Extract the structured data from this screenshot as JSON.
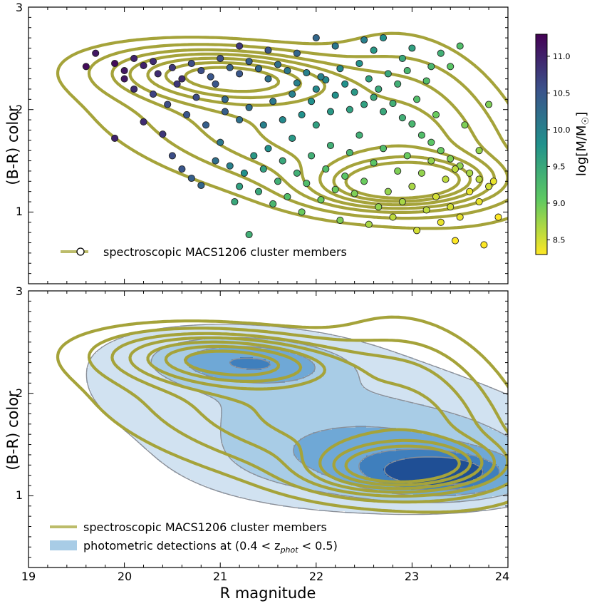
{
  "chart_data": [
    {
      "type": "scatter",
      "panel": "top",
      "xlim": [
        19,
        24
      ],
      "ylim": [
        0.3,
        3.0
      ],
      "ylabel": "(B-R) color",
      "yticks": [
        "1",
        "2",
        "3"
      ],
      "legend": {
        "label": "spectroscopic MACS1206 cluster members",
        "placement": "bottom-left"
      },
      "colorbar": {
        "label": "log[M/M☉]",
        "range": [
          8.3,
          11.3
        ],
        "ticks": [
          "11.0",
          "10.5",
          "10.0",
          "9.5",
          "9.0",
          "8.5"
        ]
      },
      "series": [
        {
          "name": "spectroscopic MACS1206 cluster members (points)",
          "points_xym": [
            [
              19.6,
              2.42,
              11.2
            ],
            [
              19.7,
              2.55,
              11.1
            ],
            [
              19.9,
              2.45,
              11.2
            ],
            [
              20.0,
              2.38,
              11.1
            ],
            [
              20.1,
              2.5,
              11.0
            ],
            [
              20.2,
              2.43,
              11.0
            ],
            [
              20.3,
              2.47,
              10.9
            ],
            [
              20.35,
              2.35,
              10.9
            ],
            [
              20.5,
              2.41,
              10.8
            ],
            [
              20.6,
              2.3,
              10.9
            ],
            [
              20.7,
              2.45,
              10.6
            ],
            [
              20.8,
              2.38,
              10.6
            ],
            [
              20.9,
              2.32,
              10.5
            ],
            [
              21.0,
              2.5,
              10.6
            ],
            [
              21.1,
              2.41,
              10.4
            ],
            [
              21.2,
              2.35,
              10.5
            ],
            [
              21.3,
              2.47,
              10.4
            ],
            [
              21.4,
              2.4,
              10.3
            ],
            [
              21.5,
              2.3,
              10.2
            ],
            [
              21.6,
              2.44,
              10.2
            ],
            [
              21.7,
              2.38,
              10.1
            ],
            [
              21.8,
              2.26,
              10.0
            ],
            [
              21.9,
              2.36,
              10.0
            ],
            [
              22.0,
              2.2,
              9.9
            ],
            [
              22.1,
              2.29,
              9.9
            ],
            [
              22.2,
              2.14,
              9.8
            ],
            [
              22.3,
              2.25,
              9.8
            ],
            [
              22.4,
              2.17,
              9.7
            ],
            [
              22.5,
              2.05,
              9.6
            ],
            [
              22.6,
              2.12,
              9.5
            ],
            [
              22.7,
              1.98,
              9.5
            ],
            [
              22.8,
              2.06,
              9.4
            ],
            [
              22.9,
              1.92,
              9.4
            ],
            [
              23.0,
              1.86,
              9.3
            ],
            [
              23.1,
              1.75,
              9.2
            ],
            [
              23.2,
              1.68,
              9.1
            ],
            [
              23.3,
              1.6,
              9.0
            ],
            [
              23.4,
              1.52,
              8.9
            ],
            [
              23.5,
              1.45,
              8.8
            ],
            [
              23.6,
              1.38,
              8.7
            ],
            [
              23.7,
              1.32,
              8.6
            ],
            [
              23.8,
              1.25,
              8.5
            ],
            [
              19.9,
              1.72,
              11.0
            ],
            [
              20.2,
              1.88,
              10.9
            ],
            [
              20.4,
              1.76,
              10.8
            ],
            [
              20.5,
              1.55,
              10.6
            ],
            [
              20.6,
              1.42,
              10.5
            ],
            [
              20.7,
              1.33,
              10.4
            ],
            [
              20.8,
              1.26,
              10.3
            ],
            [
              20.95,
              1.5,
              10.2
            ],
            [
              21.0,
              1.68,
              10.1
            ],
            [
              21.05,
              1.98,
              10.4
            ],
            [
              21.1,
              1.45,
              10.0
            ],
            [
              21.15,
              1.1,
              9.5
            ],
            [
              21.2,
              1.25,
              9.6
            ],
            [
              21.25,
              1.38,
              9.8
            ],
            [
              21.3,
              0.78,
              9.4
            ],
            [
              21.35,
              1.55,
              9.7
            ],
            [
              21.4,
              1.2,
              9.5
            ],
            [
              21.45,
              1.42,
              9.6
            ],
            [
              21.5,
              1.62,
              9.8
            ],
            [
              21.55,
              1.08,
              9.3
            ],
            [
              21.6,
              1.3,
              9.4
            ],
            [
              21.65,
              1.5,
              9.5
            ],
            [
              21.7,
              1.15,
              9.2
            ],
            [
              21.75,
              1.72,
              9.7
            ],
            [
              21.8,
              1.38,
              9.4
            ],
            [
              21.85,
              1.0,
              9.0
            ],
            [
              21.9,
              1.28,
              9.2
            ],
            [
              21.95,
              1.55,
              9.4
            ],
            [
              22.0,
              1.85,
              9.6
            ],
            [
              22.05,
              1.12,
              9.0
            ],
            [
              22.1,
              1.42,
              9.2
            ],
            [
              22.15,
              1.65,
              9.4
            ],
            [
              22.2,
              1.22,
              9.0
            ],
            [
              22.25,
              0.92,
              8.9
            ],
            [
              22.3,
              1.35,
              9.1
            ],
            [
              22.35,
              1.58,
              9.3
            ],
            [
              22.4,
              1.18,
              8.9
            ],
            [
              22.45,
              1.75,
              9.4
            ],
            [
              22.5,
              1.3,
              9.0
            ],
            [
              22.55,
              0.88,
              8.7
            ],
            [
              22.6,
              1.48,
              9.1
            ],
            [
              22.65,
              1.05,
              8.8
            ],
            [
              22.7,
              1.62,
              9.2
            ],
            [
              22.75,
              1.2,
              8.8
            ],
            [
              22.8,
              0.95,
              8.6
            ],
            [
              22.85,
              1.4,
              8.9
            ],
            [
              22.9,
              1.1,
              8.7
            ],
            [
              22.95,
              1.55,
              9.0
            ],
            [
              23.0,
              1.25,
              8.7
            ],
            [
              23.05,
              0.82,
              8.5
            ],
            [
              23.1,
              1.38,
              8.8
            ],
            [
              23.15,
              1.02,
              8.6
            ],
            [
              23.2,
              1.5,
              8.8
            ],
            [
              23.25,
              1.15,
              8.5
            ],
            [
              23.3,
              0.9,
              8.4
            ],
            [
              23.35,
              1.32,
              8.6
            ],
            [
              23.4,
              1.05,
              8.5
            ],
            [
              23.45,
              1.42,
              8.6
            ],
            [
              23.5,
              0.95,
              8.4
            ],
            [
              23.6,
              1.2,
              8.4
            ],
            [
              23.7,
              1.1,
              8.4
            ],
            [
              23.85,
              1.3,
              8.4
            ],
            [
              23.9,
              0.95,
              8.3
            ],
            [
              23.75,
              0.68,
              8.3
            ],
            [
              23.45,
              0.72,
              8.3
            ],
            [
              20.0,
              2.3,
              11.1
            ],
            [
              20.1,
              2.2,
              10.9
            ],
            [
              20.3,
              2.15,
              10.7
            ],
            [
              20.45,
              2.05,
              10.6
            ],
            [
              20.55,
              2.25,
              10.8
            ],
            [
              20.65,
              1.95,
              10.5
            ],
            [
              20.75,
              2.12,
              10.6
            ],
            [
              20.85,
              1.85,
              10.4
            ],
            [
              20.95,
              2.25,
              10.5
            ],
            [
              21.05,
              2.1,
              10.3
            ],
            [
              21.2,
              1.9,
              10.2
            ],
            [
              21.3,
              2.02,
              10.2
            ],
            [
              21.45,
              1.85,
              10.0
            ],
            [
              21.55,
              2.08,
              10.1
            ],
            [
              21.65,
              1.9,
              9.9
            ],
            [
              21.75,
              2.15,
              10.0
            ],
            [
              21.85,
              1.95,
              9.8
            ],
            [
              21.95,
              2.08,
              9.8
            ],
            [
              22.05,
              2.32,
              10.0
            ],
            [
              22.15,
              1.98,
              9.7
            ],
            [
              22.25,
              2.4,
              9.9
            ],
            [
              22.35,
              2.0,
              9.6
            ],
            [
              22.45,
              2.45,
              9.8
            ],
            [
              22.55,
              2.3,
              9.6
            ],
            [
              22.65,
              2.2,
              9.5
            ],
            [
              22.75,
              2.35,
              9.5
            ],
            [
              22.85,
              2.25,
              9.4
            ],
            [
              22.95,
              2.38,
              9.3
            ],
            [
              23.05,
              2.1,
              9.2
            ],
            [
              23.15,
              2.28,
              9.2
            ],
            [
              23.25,
              1.95,
              9.0
            ],
            [
              23.4,
              2.42,
              9.1
            ],
            [
              23.55,
              1.85,
              8.9
            ],
            [
              23.7,
              1.6,
              8.8
            ],
            [
              23.8,
              2.05,
              8.9
            ],
            [
              21.2,
              2.62,
              10.8
            ],
            [
              21.5,
              2.58,
              10.5
            ],
            [
              21.8,
              2.55,
              10.3
            ],
            [
              22.0,
              2.7,
              10.3
            ],
            [
              22.2,
              2.62,
              10.1
            ],
            [
              22.5,
              2.68,
              10.0
            ],
            [
              22.7,
              2.7,
              9.8
            ],
            [
              23.0,
              2.6,
              9.6
            ],
            [
              23.3,
              2.55,
              9.4
            ],
            [
              23.5,
              2.62,
              9.2
            ],
            [
              23.2,
              2.42,
              9.3
            ],
            [
              22.9,
              2.5,
              9.5
            ],
            [
              22.6,
              2.58,
              9.7
            ]
          ]
        },
        {
          "name": "spectroscopic MACS1206 cluster members (contours)",
          "levels": 7
        }
      ]
    },
    {
      "type": "area",
      "panel": "bottom",
      "xlim": [
        19,
        24
      ],
      "ylim": [
        0.3,
        3.0
      ],
      "xlabel": "R magnitude",
      "ylabel": "(B-R) color",
      "xticks": [
        "19",
        "20",
        "21",
        "22",
        "23",
        "24"
      ],
      "yticks": [
        "1",
        "2",
        "3"
      ],
      "legend": {
        "placement": "bottom-left",
        "entries": [
          {
            "label": "spectroscopic MACS1206 cluster members",
            "kind": "line"
          },
          {
            "label_prefix": "photometric detections at (0.4 < z",
            "label_sub": "phot",
            "label_suffix": " < 0.5)",
            "kind": "patch"
          }
        ]
      },
      "series": [
        {
          "name": "photometric detections at (0.4 < z_phot < 0.5)",
          "levels": 5,
          "colors": [
            "#d1e2f1",
            "#a8cce6",
            "#6fa8d6",
            "#3f7fbd",
            "#1f4f95"
          ]
        },
        {
          "name": "spectroscopic MACS1206 cluster members",
          "levels": 7
        }
      ]
    }
  ],
  "colors": {
    "contour": "#a5a33a",
    "legend_line": "#bcbc6a",
    "marker_edge": "#222222"
  }
}
